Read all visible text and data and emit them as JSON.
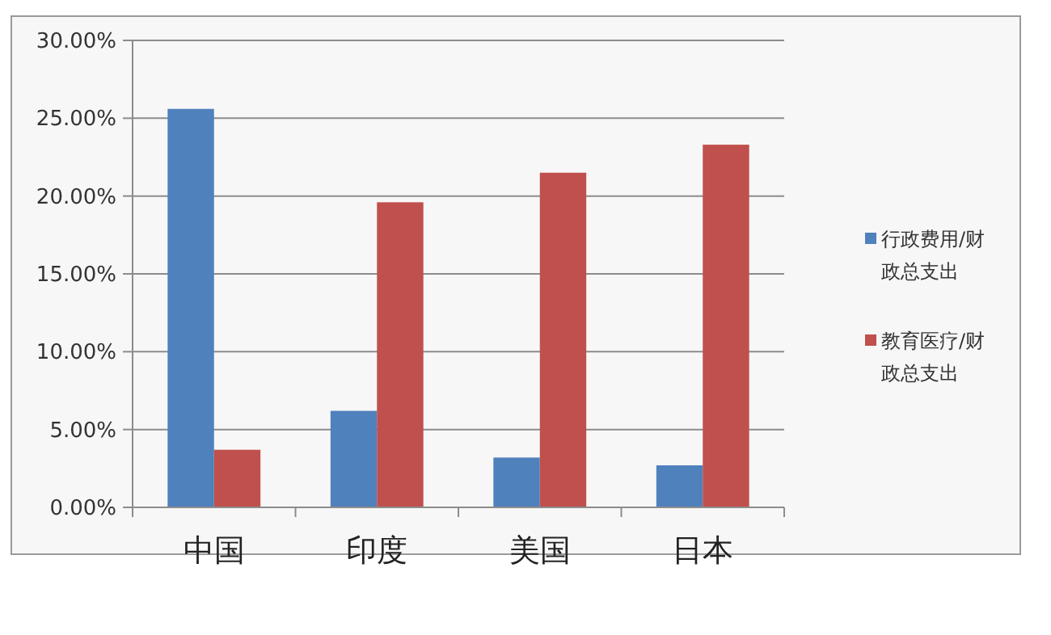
{
  "chart_data": {
    "type": "bar",
    "categories": [
      "中国",
      "印度",
      "美国",
      "日本"
    ],
    "series": [
      {
        "name": "行政费用/财政总支出",
        "color": "#4f81bd",
        "values": [
          25.6,
          6.2,
          3.2,
          2.7
        ]
      },
      {
        "name": "教育医疗/财政总支出",
        "color": "#c0504d",
        "values": [
          3.7,
          19.6,
          21.5,
          23.3
        ]
      }
    ],
    "ylim": [
      0,
      30
    ],
    "yticks": [
      {
        "value": 0,
        "label": "0.00%"
      },
      {
        "value": 5,
        "label": "5.00%"
      },
      {
        "value": 10,
        "label": "10.00%"
      },
      {
        "value": 15,
        "label": "15.00%"
      },
      {
        "value": 20,
        "label": "20.00%"
      },
      {
        "value": 25,
        "label": "25.00%"
      },
      {
        "value": 30,
        "label": "30.00%"
      }
    ],
    "grid": "y",
    "legend": "right"
  }
}
